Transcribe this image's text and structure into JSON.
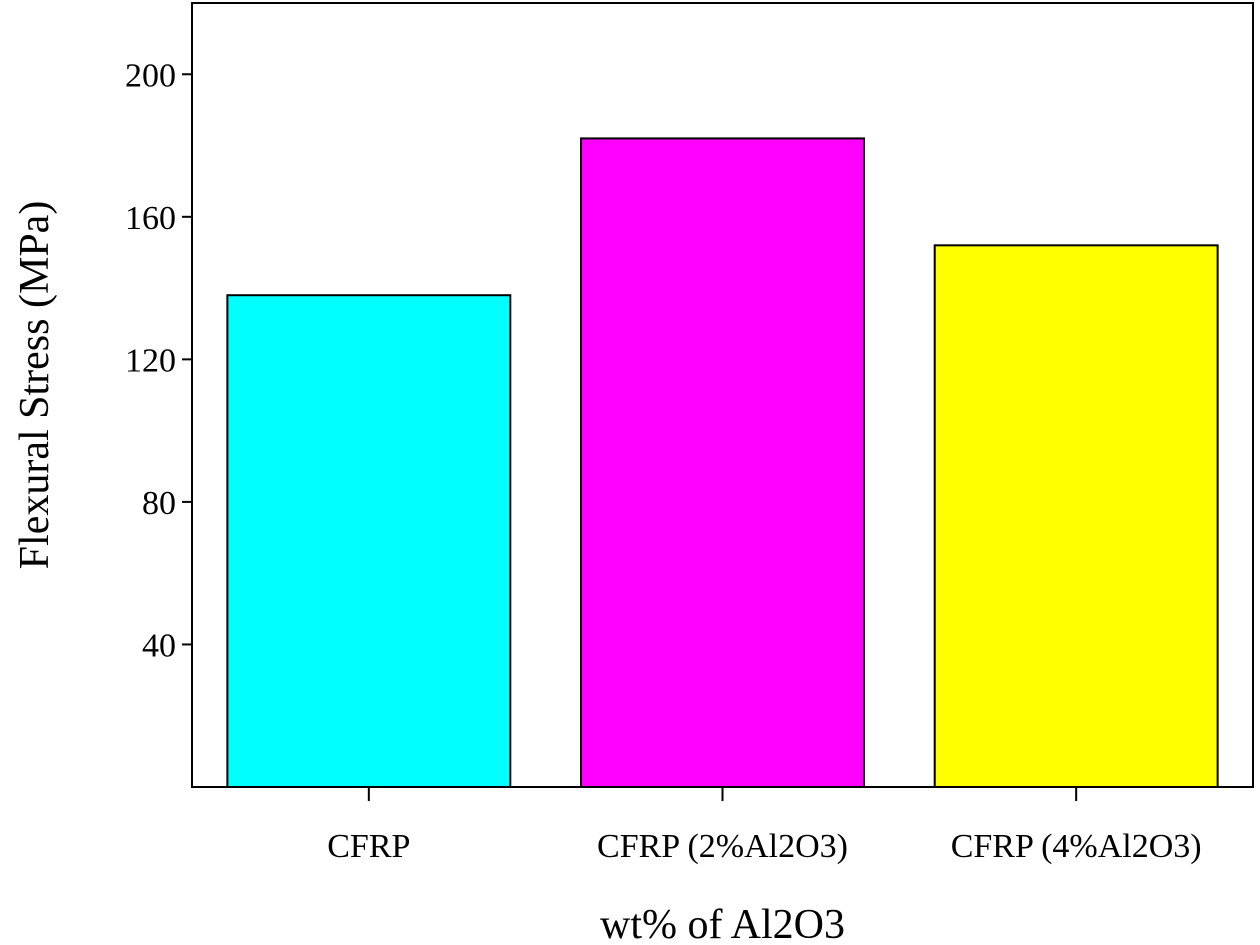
{
  "chart_data": {
    "type": "bar",
    "title": "",
    "xlabel": "wt% of Al2O3",
    "ylabel": "Flexural Stress (MPa)",
    "categories": [
      "CFRP",
      "CFRP (2%Al2O3)",
      "CFRP (4%Al2O3)"
    ],
    "values": [
      138,
      182,
      152
    ],
    "colors": [
      "#00ffff",
      "#ff00ff",
      "#ffff00"
    ],
    "ylim": [
      0,
      220
    ],
    "yticks": [
      40,
      80,
      120,
      160,
      200
    ],
    "ytick_labels": [
      "40",
      "80",
      "120",
      "160",
      "200"
    ],
    "grid": false,
    "legend": "none",
    "bar_edge_color": "#000000",
    "frame": "box"
  }
}
